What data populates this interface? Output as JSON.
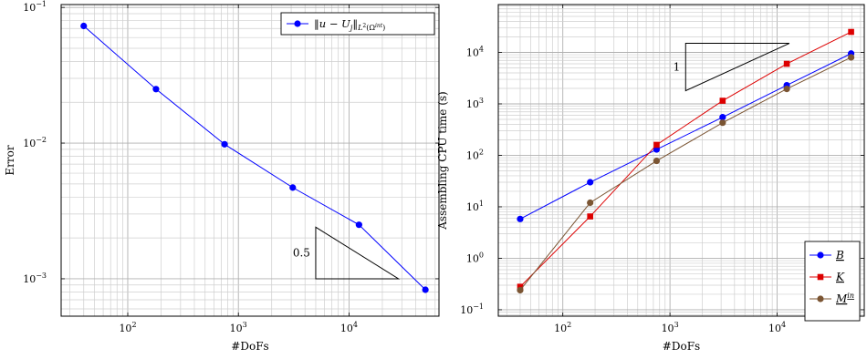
{
  "chart_data": [
    {
      "type": "line",
      "xscale": "log",
      "yscale": "log",
      "xlabel": "#DoFs",
      "ylabel": "Error",
      "xlim": [
        25,
        65000
      ],
      "ylim": [
        0.00053,
        0.105
      ],
      "grid": true,
      "legend_position": "top-right",
      "x_ticks": [
        {
          "value": 100,
          "mant": "10",
          "exp": "2"
        },
        {
          "value": 1000,
          "mant": "10",
          "exp": "3"
        },
        {
          "value": 10000,
          "mant": "10",
          "exp": "4"
        }
      ],
      "y_ticks": [
        {
          "value": 0.001,
          "mant": "10",
          "exp": "−3"
        },
        {
          "value": 0.01,
          "mant": "10",
          "exp": "−2"
        },
        {
          "value": 0.1,
          "mant": "10",
          "exp": "−1"
        }
      ],
      "series": [
        {
          "name": "‖u − Uj‖L²(Ωint)",
          "color": "#0000ff",
          "marker": "circle",
          "x": [
            40,
            180,
            750,
            3100,
            12300,
            49000
          ],
          "y": [
            0.073,
            0.025,
            0.0098,
            0.0047,
            0.0025,
            0.00083
          ]
        }
      ],
      "slope_triangle": {
        "label": "0.5",
        "x": [
          5000,
          28000
        ],
        "y": [
          0.001,
          0.0024
        ]
      }
    },
    {
      "type": "line",
      "xscale": "log",
      "yscale": "log",
      "xlabel": "#DoFs",
      "ylabel": "Assembling CPU time (s)",
      "xlim": [
        25,
        65000
      ],
      "ylim": [
        0.075,
        85000
      ],
      "grid": true,
      "legend_position": "bottom-right",
      "x_ticks": [
        {
          "value": 100,
          "mant": "10",
          "exp": "2"
        },
        {
          "value": 1000,
          "mant": "10",
          "exp": "3"
        },
        {
          "value": 10000,
          "mant": "10",
          "exp": "4"
        }
      ],
      "y_ticks": [
        {
          "value": 0.1,
          "mant": "10",
          "exp": "−1"
        },
        {
          "value": 1,
          "mant": "10",
          "exp": "0"
        },
        {
          "value": 10,
          "mant": "10",
          "exp": "1"
        },
        {
          "value": 100,
          "mant": "10",
          "exp": "2"
        },
        {
          "value": 1000,
          "mant": "10",
          "exp": "3"
        },
        {
          "value": 10000,
          "mant": "10",
          "exp": "4"
        }
      ],
      "series": [
        {
          "name": "B",
          "color": "#0000ff",
          "marker": "circle",
          "x": [
            40,
            180,
            750,
            3100,
            12300,
            49000
          ],
          "y": [
            5.8,
            30,
            130,
            550,
            2300,
            9500
          ]
        },
        {
          "name": "K",
          "color": "#dd0000",
          "marker": "square",
          "x": [
            40,
            180,
            750,
            3100,
            12300,
            49000
          ],
          "y": [
            0.28,
            6.5,
            160,
            1150,
            6000,
            25000
          ]
        },
        {
          "name": "Min",
          "color": "#7b5533",
          "marker": "circle",
          "x": [
            40,
            180,
            750,
            3100,
            12300,
            49000
          ],
          "y": [
            0.24,
            12,
            78,
            430,
            1950,
            8000
          ]
        }
      ],
      "slope_triangle": {
        "label": "1",
        "x": [
          1400,
          13000
        ],
        "y": [
          1800,
          15000
        ]
      }
    }
  ]
}
